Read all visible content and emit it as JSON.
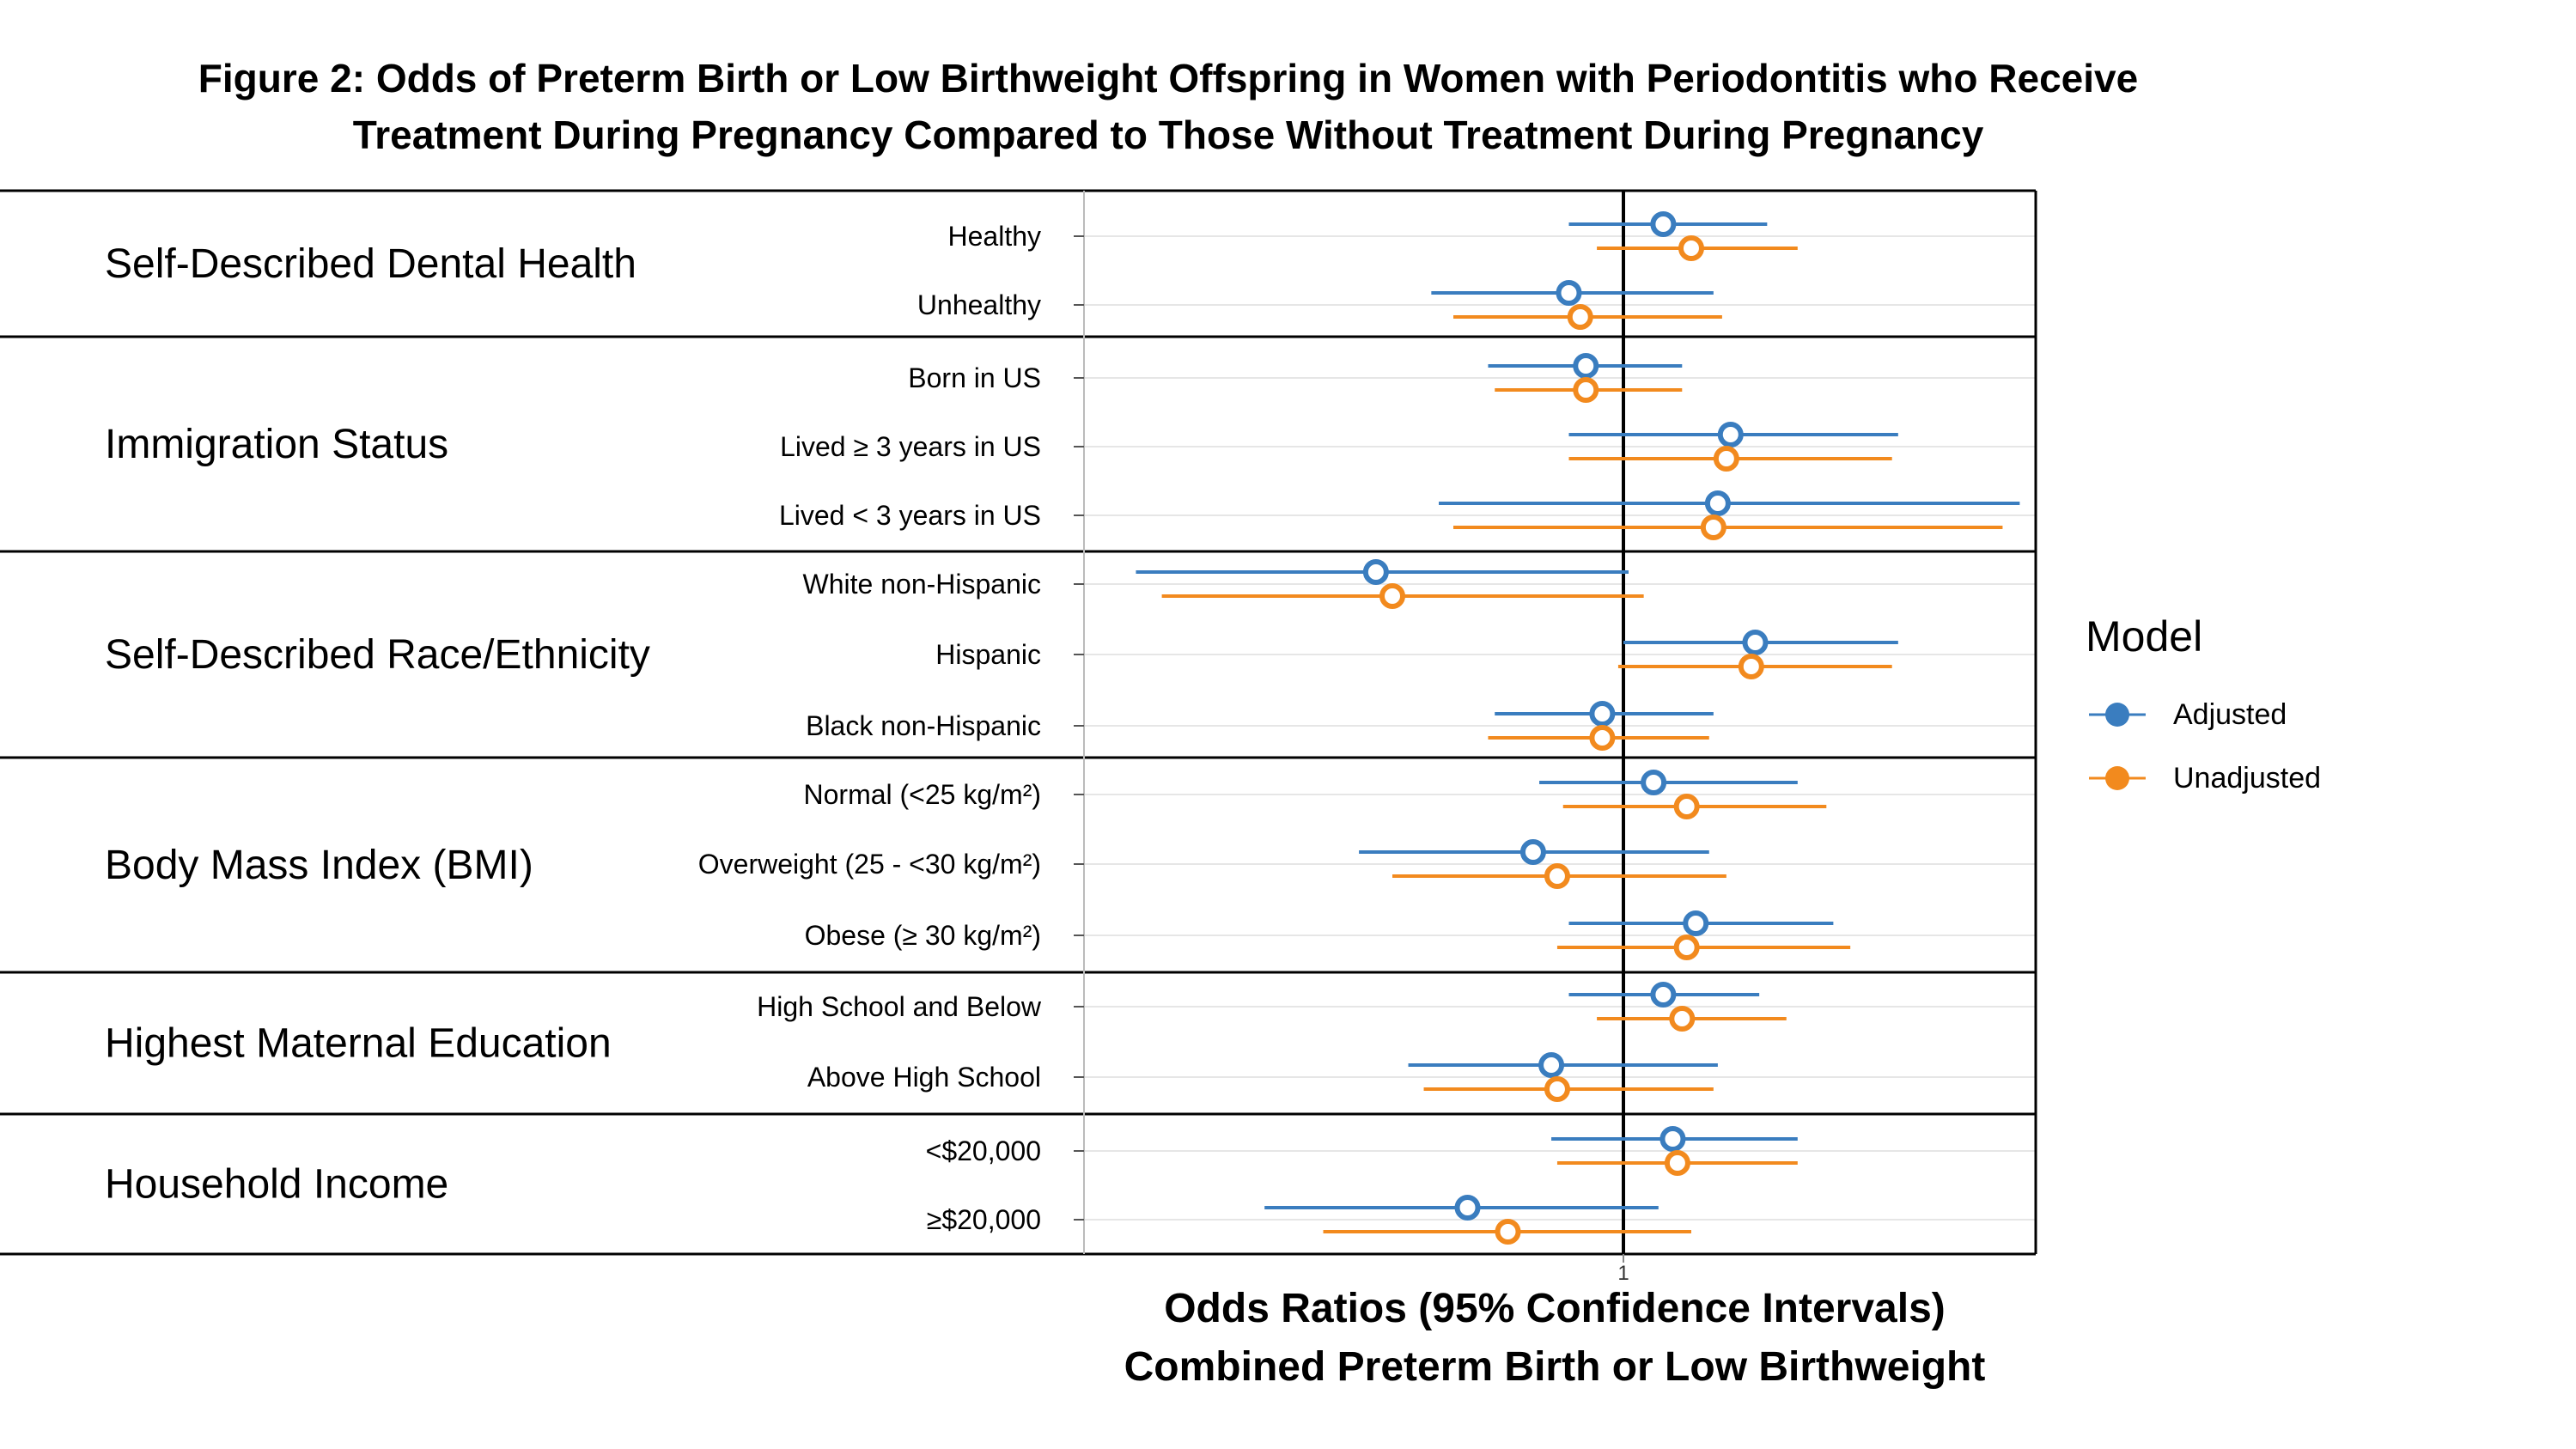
{
  "chart_data": {
    "type": "forest",
    "title_lines": [
      "Figure 2: Odds of Preterm Birth or Low Birthweight Offspring in Women with Periodontitis who Receive",
      "Treatment During Pregnancy Compared to Those Without Treatment During Pregnancy"
    ],
    "xlabel_lines": [
      "Odds Ratios (95% Confidence Intervals)",
      "Combined Preterm Birth or Low Birthweight"
    ],
    "x_ticks": [
      "1"
    ],
    "x_scale": "log",
    "xlim": [
      0.35,
      2.2
    ],
    "reference_line": 1,
    "legend": {
      "title": "Model",
      "placement": "right",
      "items": [
        {
          "key": "adjusted",
          "label": "Adjusted",
          "color": "#3A7DBF"
        },
        {
          "key": "unadjusted",
          "label": "Unadjusted",
          "color": "#F28A1E"
        }
      ]
    },
    "groups": [
      {
        "name": "Self-Described Dental Health",
        "rows": [
          {
            "label": "Healthy",
            "adjusted": {
              "or": 1.08,
              "lo": 0.9,
              "hi": 1.32
            },
            "unadjusted": {
              "or": 1.14,
              "lo": 0.95,
              "hi": 1.4
            }
          },
          {
            "label": "Unhealthy",
            "adjusted": {
              "or": 0.9,
              "lo": 0.69,
              "hi": 1.19
            },
            "unadjusted": {
              "or": 0.92,
              "lo": 0.72,
              "hi": 1.21
            }
          }
        ]
      },
      {
        "name": "Immigration Status",
        "rows": [
          {
            "label": "Born in US",
            "adjusted": {
              "or": 0.93,
              "lo": 0.77,
              "hi": 1.12
            },
            "unadjusted": {
              "or": 0.93,
              "lo": 0.78,
              "hi": 1.12
            }
          },
          {
            "label": "Lived ≥ 3 years in US",
            "adjusted": {
              "or": 1.23,
              "lo": 0.9,
              "hi": 1.7
            },
            "unadjusted": {
              "or": 1.22,
              "lo": 0.9,
              "hi": 1.68
            }
          },
          {
            "label": "Lived < 3 years in US",
            "adjusted": {
              "or": 1.2,
              "lo": 0.7,
              "hi": 2.15
            },
            "unadjusted": {
              "or": 1.19,
              "lo": 0.72,
              "hi": 2.08
            }
          }
        ]
      },
      {
        "name": "Self-Described Race/Ethnicity",
        "rows": [
          {
            "label": "White non-Hispanic",
            "adjusted": {
              "or": 0.62,
              "lo": 0.39,
              "hi": 1.01
            },
            "unadjusted": {
              "or": 0.64,
              "lo": 0.41,
              "hi": 1.04
            }
          },
          {
            "label": "Hispanic",
            "adjusted": {
              "or": 1.29,
              "lo": 1.0,
              "hi": 1.7
            },
            "unadjusted": {
              "or": 1.28,
              "lo": 0.99,
              "hi": 1.68
            }
          },
          {
            "label": "Black non-Hispanic",
            "adjusted": {
              "or": 0.96,
              "lo": 0.78,
              "hi": 1.19
            },
            "unadjusted": {
              "or": 0.96,
              "lo": 0.77,
              "hi": 1.18
            }
          }
        ]
      },
      {
        "name": "Body Mass Index (BMI)",
        "rows": [
          {
            "label": "Normal (<25 kg/m²)",
            "adjusted": {
              "or": 1.06,
              "lo": 0.85,
              "hi": 1.4
            },
            "unadjusted": {
              "or": 1.13,
              "lo": 0.89,
              "hi": 1.48
            }
          },
          {
            "label": "Overweight (25 - <30 kg/m²)",
            "adjusted": {
              "or": 0.84,
              "lo": 0.6,
              "hi": 1.18
            },
            "unadjusted": {
              "or": 0.88,
              "lo": 0.64,
              "hi": 1.22
            }
          },
          {
            "label": "Obese (≥ 30 kg/m²)",
            "adjusted": {
              "or": 1.15,
              "lo": 0.9,
              "hi": 1.5
            },
            "unadjusted": {
              "or": 1.13,
              "lo": 0.88,
              "hi": 1.55
            }
          }
        ]
      },
      {
        "name": "Highest Maternal Education",
        "rows": [
          {
            "label": "High School and Below",
            "adjusted": {
              "or": 1.08,
              "lo": 0.9,
              "hi": 1.3
            },
            "unadjusted": {
              "or": 1.12,
              "lo": 0.95,
              "hi": 1.37
            }
          },
          {
            "label": "Above High School",
            "adjusted": {
              "or": 0.87,
              "lo": 0.66,
              "hi": 1.2
            },
            "unadjusted": {
              "or": 0.88,
              "lo": 0.68,
              "hi": 1.19
            }
          }
        ]
      },
      {
        "name": "Household Income",
        "rows": [
          {
            "label": "<$20,000",
            "adjusted": {
              "or": 1.1,
              "lo": 0.87,
              "hi": 1.4
            },
            "unadjusted": {
              "or": 1.11,
              "lo": 0.88,
              "hi": 1.4
            }
          },
          {
            "label": "≥$20,000",
            "adjusted": {
              "or": 0.74,
              "lo": 0.5,
              "hi": 1.07
            },
            "unadjusted": {
              "or": 0.8,
              "lo": 0.56,
              "hi": 1.14
            }
          }
        ]
      }
    ]
  }
}
